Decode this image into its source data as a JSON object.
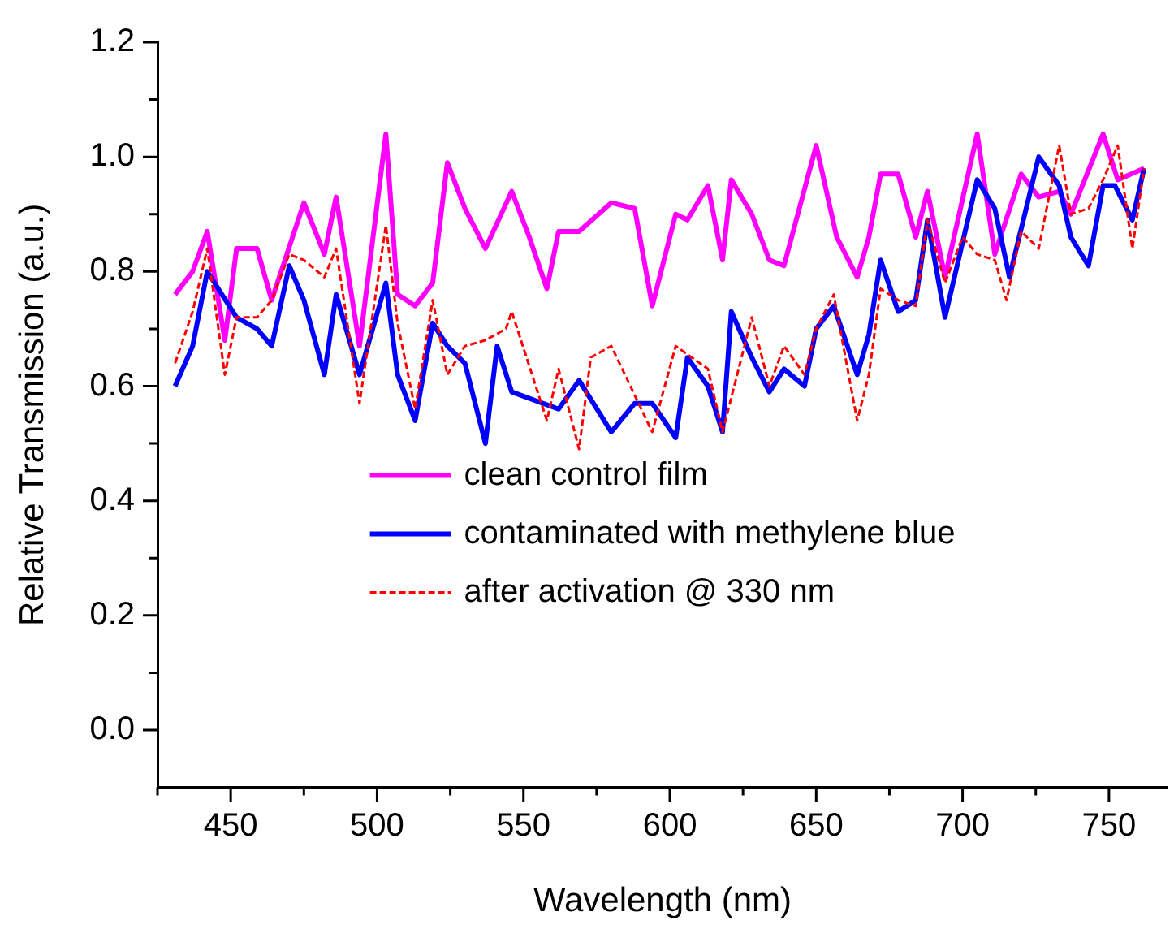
{
  "chart_data": {
    "type": "line",
    "xlabel": "Wavelength (nm)",
    "ylabel": "Relative Transmission (a.u.)",
    "xlim": [
      425,
      770
    ],
    "ylim": [
      -0.1,
      1.2
    ],
    "xticks": [
      {
        "value": 425,
        "label": null
      },
      450,
      {
        "value": 475,
        "label": null
      },
      500,
      {
        "value": 525,
        "label": null
      },
      550,
      {
        "value": 575,
        "label": null
      },
      600,
      {
        "value": 625,
        "label": null
      },
      650,
      {
        "value": 675,
        "label": null
      },
      700,
      {
        "value": 725,
        "label": null
      },
      750
    ],
    "yticks": [
      {
        "value": 0,
        "label": "0.0"
      },
      {
        "value": 0.1,
        "label": null
      },
      {
        "value": 0.2,
        "label": "0.2"
      },
      {
        "value": 0.3,
        "label": null
      },
      {
        "value": 0.4,
        "label": "0.4"
      },
      {
        "value": 0.5,
        "label": null
      },
      {
        "value": 0.6,
        "label": "0.6"
      },
      {
        "value": 0.7,
        "label": null
      },
      {
        "value": 0.8,
        "label": "0.8"
      },
      {
        "value": 0.9,
        "label": null
      },
      {
        "value": 1,
        "label": "1.0"
      },
      {
        "value": 1.1,
        "label": null
      },
      {
        "value": 1.2,
        "label": "1.2"
      }
    ],
    "grid": false,
    "legend": "center",
    "marker": "none",
    "series": [
      {
        "name": "clean control film",
        "color": "#ff00ff",
        "line_style": "solid",
        "x": [
          431,
          437,
          442,
          448,
          452,
          459,
          464,
          475,
          482,
          486,
          494,
          503,
          507,
          513,
          519,
          524,
          530,
          537,
          546,
          552,
          558,
          562,
          569,
          580,
          588,
          594,
          602,
          606,
          613,
          618,
          621,
          628,
          634,
          639,
          650,
          657,
          664,
          668,
          672,
          678,
          684,
          688,
          694,
          705,
          711,
          720,
          726,
          733,
          737,
          748,
          753,
          762
        ],
        "values": [
          0.76,
          0.8,
          0.87,
          0.68,
          0.84,
          0.84,
          0.75,
          0.92,
          0.83,
          0.93,
          0.67,
          1.04,
          0.76,
          0.74,
          0.78,
          0.99,
          0.91,
          0.84,
          0.94,
          0.86,
          0.77,
          0.87,
          0.87,
          0.92,
          0.91,
          0.74,
          0.9,
          0.89,
          0.95,
          0.82,
          0.96,
          0.9,
          0.82,
          0.81,
          1.02,
          0.86,
          0.79,
          0.86,
          0.97,
          0.97,
          0.86,
          0.94,
          0.79,
          1.04,
          0.83,
          0.97,
          0.93,
          0.94,
          0.9,
          1.04,
          0.96,
          0.98
        ]
      },
      {
        "name": "contaminated with methylene blue",
        "color": "#0000ff",
        "line_style": "solid",
        "x": [
          431,
          437,
          442,
          452,
          459,
          464,
          470,
          475,
          482,
          486,
          494,
          503,
          507,
          513,
          519,
          524,
          530,
          537,
          541,
          546,
          562,
          569,
          580,
          588,
          594,
          602,
          606,
          613,
          618,
          621,
          628,
          634,
          639,
          646,
          650,
          656,
          664,
          668,
          672,
          678,
          684,
          688,
          694,
          705,
          711,
          716,
          726,
          733,
          737,
          743,
          748,
          752,
          758,
          762
        ],
        "values": [
          0.6,
          0.67,
          0.8,
          0.72,
          0.7,
          0.67,
          0.81,
          0.75,
          0.62,
          0.76,
          0.62,
          0.78,
          0.62,
          0.54,
          0.71,
          0.67,
          0.64,
          0.5,
          0.67,
          0.59,
          0.56,
          0.61,
          0.52,
          0.57,
          0.57,
          0.51,
          0.65,
          0.6,
          0.52,
          0.73,
          0.65,
          0.59,
          0.63,
          0.6,
          0.7,
          0.74,
          0.62,
          0.69,
          0.82,
          0.73,
          0.75,
          0.89,
          0.72,
          0.96,
          0.91,
          0.79,
          1.0,
          0.95,
          0.86,
          0.81,
          0.95,
          0.95,
          0.89,
          0.98
        ]
      },
      {
        "name": "after activation @ 330 nm",
        "color": "#ff0000",
        "line_style": "dashed",
        "x": [
          431,
          437,
          442,
          448,
          452,
          459,
          464,
          470,
          475,
          482,
          486,
          494,
          503,
          507,
          513,
          519,
          524,
          530,
          537,
          544,
          546,
          558,
          562,
          569,
          573,
          580,
          594,
          602,
          613,
          618,
          628,
          634,
          639,
          646,
          650,
          656,
          664,
          668,
          672,
          678,
          684,
          688,
          694,
          700,
          705,
          711,
          715,
          720,
          726,
          733,
          737,
          743,
          748,
          753,
          758,
          762
        ],
        "values": [
          0.64,
          0.73,
          0.84,
          0.62,
          0.72,
          0.72,
          0.75,
          0.83,
          0.82,
          0.79,
          0.84,
          0.57,
          0.88,
          0.71,
          0.56,
          0.75,
          0.62,
          0.67,
          0.68,
          0.7,
          0.73,
          0.54,
          0.63,
          0.49,
          0.65,
          0.67,
          0.52,
          0.67,
          0.63,
          0.52,
          0.72,
          0.6,
          0.67,
          0.62,
          0.7,
          0.76,
          0.54,
          0.62,
          0.77,
          0.75,
          0.74,
          0.89,
          0.78,
          0.86,
          0.83,
          0.82,
          0.75,
          0.87,
          0.84,
          1.02,
          0.9,
          0.91,
          0.96,
          1.02,
          0.84,
          0.98
        ]
      }
    ]
  }
}
